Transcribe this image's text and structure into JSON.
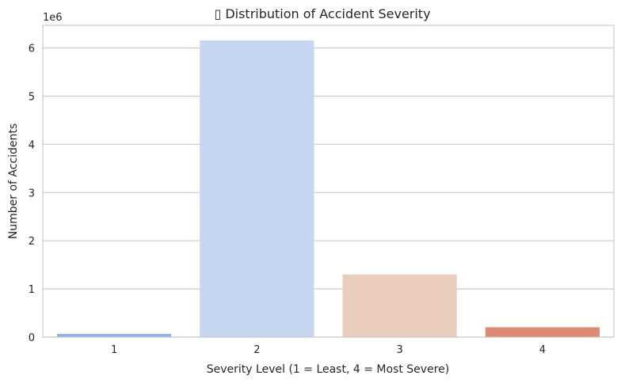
{
  "chart_data": {
    "type": "bar",
    "title": "▯ Distribution of Accident Severity",
    "xlabel": "Severity Level (1 = Least, 4 = Most Severe)",
    "ylabel": "Number of Accidents",
    "y_scale_label": "1e6",
    "categories": [
      "1",
      "2",
      "3",
      "4"
    ],
    "values": [
      67366,
      6156981,
      1299337,
      204710
    ],
    "ylim": [
      0,
      6470000
    ],
    "yticks": [
      0,
      1000000,
      2000000,
      3000000,
      4000000,
      5000000,
      6000000
    ],
    "ytick_labels": [
      "0",
      "1",
      "2",
      "3",
      "4",
      "5",
      "6"
    ],
    "colors": [
      "#8fb0e8",
      "#c6d5f0",
      "#eacdbd",
      "#dd8a74"
    ],
    "grid": "y",
    "legend": "none"
  }
}
